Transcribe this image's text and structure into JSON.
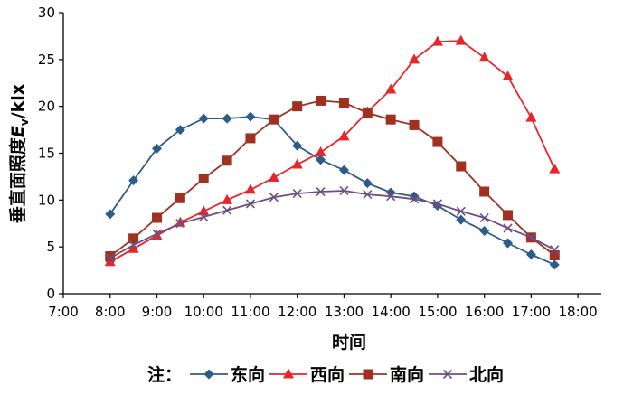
{
  "chart_data": {
    "type": "line",
    "xlabel": "时间",
    "ylabel_prefix": "垂直面照度",
    "ylabel_symbol": "E",
    "ylabel_subscript": "v",
    "ylabel_unit": "/klx",
    "x_ticks": [
      "7:00",
      "8:00",
      "9:00",
      "10:00",
      "11:00",
      "12:00",
      "13:00",
      "14:00",
      "15:00",
      "16:00",
      "17:00",
      "18:00"
    ],
    "x_range": [
      7,
      18.5
    ],
    "y_ticks": [
      0,
      5,
      10,
      15,
      20,
      25,
      30
    ],
    "ylim": [
      0,
      30
    ],
    "grid": false,
    "legend_prefix": "注：",
    "legend_position": "bottom",
    "series": [
      {
        "name": "东向",
        "color": "#2E5C8A",
        "marker": "diamond",
        "x": [
          8,
          8.5,
          9,
          9.5,
          10,
          10.5,
          11,
          11.5,
          12,
          12.5,
          13,
          13.5,
          14,
          14.5,
          15,
          15.5,
          16,
          16.5,
          17,
          17.5
        ],
        "values": [
          8.5,
          12.1,
          15.5,
          17.5,
          18.7,
          18.7,
          18.9,
          18.6,
          15.8,
          14.3,
          13.2,
          11.8,
          10.8,
          10.4,
          9.4,
          7.9,
          6.7,
          5.4,
          4.2,
          3.1
        ]
      },
      {
        "name": "西向",
        "color": "#E8262A",
        "marker": "triangle",
        "x": [
          8,
          8.5,
          9,
          9.5,
          10,
          10.5,
          11,
          11.5,
          12,
          12.5,
          13,
          13.5,
          14,
          14.5,
          15,
          15.5,
          16,
          16.5,
          17,
          17.5
        ],
        "values": [
          3.4,
          4.8,
          6.2,
          7.6,
          8.8,
          10.0,
          11.1,
          12.4,
          13.8,
          15.1,
          16.8,
          19.4,
          21.8,
          25.0,
          26.9,
          27.0,
          25.2,
          23.2,
          18.8,
          13.3
        ]
      },
      {
        "name": "南向",
        "color": "#A0301F",
        "marker": "square",
        "x": [
          8,
          8.5,
          9,
          9.5,
          10,
          10.5,
          11,
          11.5,
          12,
          12.5,
          13,
          13.5,
          14,
          14.5,
          15,
          15.5,
          16,
          16.5,
          17,
          17.5
        ],
        "values": [
          4.0,
          5.9,
          8.1,
          10.2,
          12.3,
          14.2,
          16.6,
          18.6,
          20.0,
          20.6,
          20.4,
          19.3,
          18.6,
          18.0,
          16.2,
          13.6,
          10.9,
          8.4,
          6.0,
          4.1
        ]
      },
      {
        "name": "北向",
        "color": "#6E4F7F",
        "marker": "x",
        "x": [
          8,
          8.5,
          9,
          9.5,
          10,
          10.5,
          11,
          11.5,
          12,
          12.5,
          13,
          13.5,
          14,
          14.5,
          15,
          15.5,
          16,
          16.5,
          17,
          17.5
        ],
        "values": [
          3.8,
          5.2,
          6.4,
          7.5,
          8.2,
          8.9,
          9.6,
          10.3,
          10.7,
          10.9,
          11.0,
          10.6,
          10.4,
          10.1,
          9.6,
          8.8,
          8.1,
          7.0,
          6.0,
          4.7
        ]
      }
    ]
  }
}
